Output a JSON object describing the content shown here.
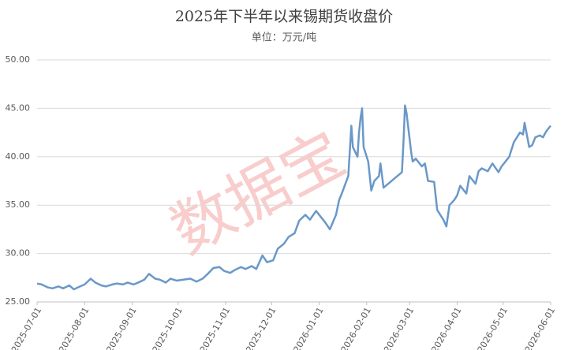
{
  "chart_data": {
    "type": "line",
    "title": "2025年下半年以来锡期货收盘价",
    "subtitle": "单位：万元/吨",
    "watermark": "数据宝",
    "x": [
      "2025-07-01",
      "2025-07-04",
      "2025-07-08",
      "2025-07-11",
      "2025-07-15",
      "2025-07-18",
      "2025-07-22",
      "2025-07-25",
      "2025-07-29",
      "2025-08-01",
      "2025-08-05",
      "2025-08-08",
      "2025-08-12",
      "2025-08-15",
      "2025-08-19",
      "2025-08-22",
      "2025-08-26",
      "2025-08-29",
      "2025-09-02",
      "2025-09-05",
      "2025-09-09",
      "2025-09-12",
      "2025-09-16",
      "2025-09-19",
      "2025-09-23",
      "2025-09-26",
      "2025-09-30",
      "2025-10-09",
      "2025-10-13",
      "2025-10-17",
      "2025-10-21",
      "2025-10-24",
      "2025-10-28",
      "2025-10-31",
      "2025-11-04",
      "2025-11-07",
      "2025-11-11",
      "2025-11-14",
      "2025-11-18",
      "2025-11-21",
      "2025-11-25",
      "2025-11-28",
      "2025-12-02",
      "2025-12-05",
      "2025-12-09",
      "2025-12-12",
      "2025-12-16",
      "2025-12-19",
      "2025-12-23",
      "2025-12-26",
      "2025-12-30",
      "2026-01-05",
      "2026-01-08",
      "2026-01-12",
      "2026-01-14",
      "2026-01-16",
      "2026-01-20",
      "2026-01-22",
      "2026-01-23",
      "2026-01-26",
      "2026-01-27",
      "2026-01-28",
      "2026-01-29",
      "2026-01-30",
      "2026-02-02",
      "2026-02-04",
      "2026-02-06",
      "2026-02-09",
      "2026-02-10",
      "2026-02-12",
      "2026-02-24",
      "2026-02-25",
      "2026-02-26",
      "2026-02-27",
      "2026-03-02",
      "2026-03-03",
      "2026-03-05",
      "2026-03-09",
      "2026-03-11",
      "2026-03-13",
      "2026-03-17",
      "2026-03-19",
      "2026-03-23",
      "2026-03-25",
      "2026-03-27",
      "2026-03-30",
      "2026-04-01",
      "2026-04-03",
      "2026-04-07",
      "2026-04-09",
      "2026-04-13",
      "2026-04-15",
      "2026-04-17",
      "2026-04-21",
      "2026-04-24",
      "2026-04-28",
      "2026-04-30",
      "2026-05-05",
      "2026-05-08",
      "2026-05-12",
      "2026-05-14",
      "2026-05-15",
      "2026-05-18",
      "2026-05-20",
      "2026-05-22",
      "2026-05-25",
      "2026-05-27",
      "2026-05-29",
      "2026-06-01"
    ],
    "series": [
      {
        "color": "#6a98c8",
        "values": [
          26.9,
          26.8,
          26.5,
          26.4,
          26.6,
          26.4,
          26.7,
          26.3,
          26.6,
          26.8,
          27.4,
          27.0,
          26.7,
          26.6,
          26.8,
          26.9,
          26.8,
          27.0,
          26.8,
          27.0,
          27.3,
          27.9,
          27.4,
          27.3,
          27.0,
          27.4,
          27.2,
          27.4,
          27.1,
          27.4,
          28.0,
          28.5,
          28.6,
          28.2,
          28.0,
          28.3,
          28.6,
          28.4,
          28.7,
          28.4,
          29.8,
          29.1,
          29.3,
          30.5,
          31.0,
          31.7,
          32.1,
          33.4,
          34.0,
          33.5,
          34.4,
          33.2,
          32.5,
          34.0,
          35.5,
          36.3,
          38.0,
          43.2,
          41.0,
          40.0,
          42.5,
          44.0,
          45.0,
          41.0,
          39.5,
          36.5,
          37.5,
          38.0,
          39.3,
          36.8,
          38.4,
          41.5,
          45.3,
          44.5,
          40.5,
          39.5,
          39.8,
          39.0,
          39.3,
          37.5,
          37.4,
          34.5,
          33.5,
          32.8,
          35.0,
          35.5,
          36.0,
          37.0,
          36.2,
          38.0,
          37.2,
          38.5,
          38.8,
          38.5,
          39.3,
          38.4,
          39.0,
          40.0,
          41.5,
          42.5,
          42.3,
          43.5,
          41.0,
          41.2,
          42.0,
          42.2,
          42.0,
          42.6,
          43.2
        ]
      }
    ],
    "xlim": [
      "2025-07-01",
      "2026-06-01"
    ],
    "xticks": [
      "2025-07-01",
      "2025-08-01",
      "2025-09-01",
      "2025-10-01",
      "2025-11-01",
      "2025-12-01",
      "2026-01-01",
      "2026-02-01",
      "2026-03-01",
      "2026-04-01",
      "2026-05-01",
      "2026-06-01"
    ],
    "ylim": [
      25,
      50
    ],
    "yticks": [
      {
        "value": 25,
        "label": "25.00"
      },
      {
        "value": 30,
        "label": "30.00"
      },
      {
        "value": 35,
        "label": "35.00"
      },
      {
        "value": 40,
        "label": "40.00"
      },
      {
        "value": 45,
        "label": "45.00"
      },
      {
        "value": 50,
        "label": "50.00"
      }
    ],
    "grid": true
  }
}
